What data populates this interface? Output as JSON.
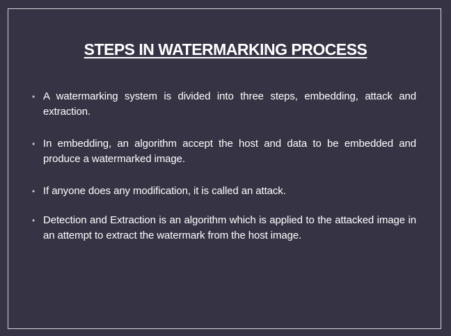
{
  "slide": {
    "title": "STEPS IN WATERMARKING PROCESS",
    "bullet_symbol": "•",
    "bullets": [
      "A watermarking system is divided into three steps, embedding, attack and extraction.",
      "In embedding, an algorithm accept the host and data to be embedded and produce a watermarked image.",
      "If anyone does any modification, it is called an attack.",
      "Detection and Extraction is an algorithm which is applied to the attacked image in an attempt to extract the watermark from the host image."
    ]
  },
  "colors": {
    "background": "#363344",
    "text": "#ffffff",
    "border": "#d8d8de"
  }
}
